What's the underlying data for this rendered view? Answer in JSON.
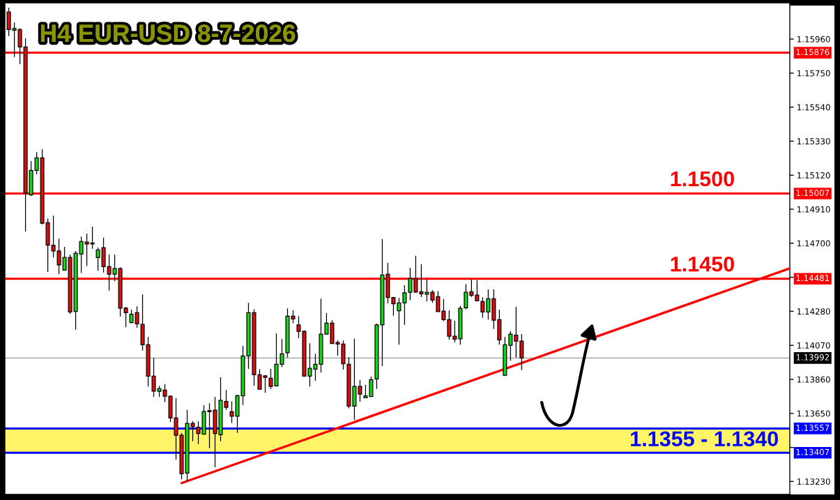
{
  "chart_data": {
    "type": "candlestick",
    "title": "H4 EUR-USD 8-7-2026",
    "categories": [
      null,
      null,
      null,
      null,
      null,
      null,
      null,
      null,
      null,
      null,
      null,
      null,
      null,
      null,
      null,
      null,
      null,
      null,
      null,
      null,
      null,
      null,
      null,
      null,
      null,
      null,
      null,
      null,
      null,
      null,
      null,
      null,
      null,
      null,
      null,
      null,
      null,
      null,
      null,
      null,
      null,
      null,
      null,
      null,
      null,
      null,
      null,
      null,
      null,
      null,
      null,
      null,
      null,
      null,
      null,
      null,
      null,
      null,
      null,
      null,
      null,
      null,
      null,
      null,
      null,
      null,
      null,
      null,
      null,
      null,
      null,
      null,
      null,
      null,
      null,
      null,
      null,
      null,
      null,
      null,
      null,
      null,
      null,
      null,
      null,
      null,
      null,
      null,
      null,
      null,
      null,
      null,
      null,
      null,
      null,
      null,
      null,
      null,
      null,
      null,
      null,
      null,
      null,
      null,
      null,
      null,
      null,
      null,
      null,
      null,
      null,
      null,
      null,
      null,
      null,
      null,
      null,
      null,
      null,
      null,
      null,
      null,
      null,
      null,
      null,
      null,
      null,
      null,
      null,
      null,
      null,
      null,
      null,
      null,
      null,
      null,
      null,
      null,
      null,
      null,
      null
    ],
    "ohlc": [
      [
        1.16127,
        1.16154,
        1.15978,
        1.16019
      ],
      [
        1.16015,
        1.16062,
        1.15849,
        1.16025
      ],
      [
        1.16019,
        1.16026,
        1.15806,
        1.15911
      ],
      [
        1.15911,
        1.15964,
        1.14774,
        1.1501
      ],
      [
        1.14999,
        1.15207,
        1.14992,
        1.1515
      ],
      [
        1.1515,
        1.15262,
        1.15125,
        1.15227
      ],
      [
        1.15227,
        1.1528,
        1.14817,
        1.14824
      ],
      [
        1.14827,
        1.14853,
        1.14523,
        1.14688
      ],
      [
        1.14688,
        1.1487,
        1.14612,
        1.14652
      ],
      [
        1.14652,
        1.14728,
        1.14509,
        1.14566
      ],
      [
        1.14534,
        1.14678,
        1.1453,
        1.14613
      ],
      [
        1.14613,
        1.1463,
        1.14265,
        1.14276
      ],
      [
        1.14279,
        1.14652,
        1.14167,
        1.14638
      ],
      [
        1.14633,
        1.14741,
        1.14516,
        1.14711
      ],
      [
        1.14707,
        1.1476,
        1.14559,
        1.14695
      ],
      [
        1.14695,
        1.14803,
        1.14666,
        1.14702
      ],
      [
        1.14612,
        1.14673,
        1.1453,
        1.14659
      ],
      [
        1.14673,
        1.14735,
        1.1452,
        1.14556
      ],
      [
        1.14556,
        1.1463,
        1.14408,
        1.14509
      ],
      [
        1.14509,
        1.1463,
        1.14466,
        1.14544
      ],
      [
        1.14544,
        1.14552,
        1.14247,
        1.143
      ],
      [
        1.143,
        1.14308,
        1.14182,
        1.14272
      ],
      [
        1.1421,
        1.1429,
        1.14207,
        1.14262
      ],
      [
        1.14272,
        1.14311,
        1.14177,
        1.14203
      ],
      [
        1.14199,
        1.14384,
        1.14038,
        1.14074
      ],
      [
        1.14074,
        1.14121,
        1.13816,
        1.1388
      ],
      [
        1.1388,
        1.13992,
        1.13751,
        1.13787
      ],
      [
        1.13786,
        1.1382,
        1.13751,
        1.13803
      ],
      [
        1.13794,
        1.1383,
        1.13719,
        1.13756
      ],
      [
        1.13756,
        1.1376,
        1.13598,
        1.13622
      ],
      [
        1.13622,
        1.13745,
        1.13365,
        1.13515
      ],
      [
        1.13515,
        1.13529,
        1.13244,
        1.13278
      ],
      [
        1.13282,
        1.13672,
        1.13232,
        1.13588
      ],
      [
        1.13588,
        1.13602,
        1.13478,
        1.13569
      ],
      [
        1.13565,
        1.13602,
        1.13461,
        1.13526
      ],
      [
        1.13522,
        1.13701,
        1.13522,
        1.13662
      ],
      [
        1.13667,
        1.13713,
        1.13435,
        1.13661
      ],
      [
        1.1367,
        1.13751,
        1.13318,
        1.13526
      ],
      [
        1.13519,
        1.13873,
        1.13478,
        1.1373
      ],
      [
        1.13724,
        1.13794,
        1.13672,
        1.13687
      ],
      [
        1.13661,
        1.13724,
        1.1359,
        1.13633
      ],
      [
        1.13633,
        1.13765,
        1.1353,
        1.1376
      ],
      [
        1.13758,
        1.14067,
        1.13702,
        1.14005
      ],
      [
        1.14005,
        1.14332,
        1.13925,
        1.14272
      ],
      [
        1.14272,
        1.14293,
        1.1382,
        1.13889
      ],
      [
        1.13889,
        1.13923,
        1.13799,
        1.13799
      ],
      [
        1.13882,
        1.13886,
        1.13777,
        1.13872
      ],
      [
        1.13867,
        1.13925,
        1.13801,
        1.13816
      ],
      [
        1.1382,
        1.14143,
        1.13816,
        1.13953
      ],
      [
        1.13953,
        1.1411,
        1.13935,
        1.14018
      ],
      [
        1.14024,
        1.14298,
        1.13995,
        1.1425
      ],
      [
        1.1425,
        1.14286,
        1.14207,
        1.14233
      ],
      [
        1.14196,
        1.1425,
        1.14114,
        1.14156
      ],
      [
        1.14157,
        1.14164,
        1.1388,
        1.1388
      ],
      [
        1.1388,
        1.14083,
        1.13816,
        1.13928
      ],
      [
        1.13923,
        1.14018,
        1.13852,
        1.13953
      ],
      [
        1.13953,
        1.14358,
        1.13902,
        1.14139
      ],
      [
        1.14139,
        1.14269,
        1.14139,
        1.14207
      ],
      [
        1.14207,
        1.14225,
        1.14078,
        1.14081
      ],
      [
        1.14088,
        1.14101,
        1.14006,
        1.14078
      ],
      [
        1.14078,
        1.141,
        1.1392,
        1.13956
      ],
      [
        1.13953,
        1.13997,
        1.13681,
        1.13695
      ],
      [
        1.13695,
        1.14111,
        1.13609,
        1.13816
      ],
      [
        1.13816,
        1.13856,
        1.13722,
        1.13769
      ],
      [
        1.13747,
        1.13827,
        1.13744,
        1.13758
      ],
      [
        1.13754,
        1.13877,
        1.13751,
        1.13859
      ],
      [
        1.13863,
        1.14204,
        1.13801,
        1.14196
      ],
      [
        1.14196,
        1.14726,
        1.13942,
        1.14504
      ],
      [
        1.14509,
        1.1458,
        1.14329,
        1.14365
      ],
      [
        1.14365,
        1.14369,
        1.14253,
        1.14326
      ],
      [
        1.14283,
        1.14362,
        1.14074,
        1.14332
      ],
      [
        1.14332,
        1.14441,
        1.14197,
        1.14394
      ],
      [
        1.14397,
        1.14549,
        1.14348,
        1.14483
      ],
      [
        1.14483,
        1.14623,
        1.14394,
        1.14399
      ],
      [
        1.14401,
        1.1457,
        1.14368,
        1.14388
      ],
      [
        1.14386,
        1.14475,
        1.14341,
        1.14397
      ],
      [
        1.14397,
        1.14411,
        1.14332,
        1.14349
      ],
      [
        1.14371,
        1.14405,
        1.14275,
        1.14278
      ],
      [
        1.14281,
        1.14355,
        1.14219,
        1.14229
      ],
      [
        1.14229,
        1.14286,
        1.14104,
        1.14126
      ],
      [
        1.14126,
        1.14222,
        1.14088,
        1.14108
      ],
      [
        1.1411,
        1.14313,
        1.14074,
        1.14298
      ],
      [
        1.14302,
        1.14447,
        1.14293,
        1.14397
      ],
      [
        1.14401,
        1.14475,
        1.14369,
        1.14378
      ],
      [
        1.1438,
        1.14473,
        1.14345,
        1.14345
      ],
      [
        1.14341,
        1.14367,
        1.1424,
        1.14276
      ],
      [
        1.14276,
        1.14415,
        1.14229,
        1.14358
      ],
      [
        1.14358,
        1.14415,
        1.14171,
        1.14225
      ],
      [
        1.14229,
        1.1429,
        1.14074,
        1.14104
      ],
      [
        1.13885,
        1.14121,
        1.1388,
        1.14074
      ],
      [
        1.1407,
        1.14157,
        1.13975,
        1.14139
      ],
      [
        1.14133,
        1.14308,
        1.13995,
        1.14096
      ],
      [
        1.14096,
        1.1414,
        1.13917,
        1.13992
      ],
      null,
      null,
      null,
      null,
      null,
      null,
      null,
      null,
      null,
      null,
      null,
      null,
      null,
      null,
      null,
      null,
      null,
      null,
      null,
      null,
      null,
      null,
      null,
      null,
      null,
      null,
      null,
      null,
      null,
      null,
      null,
      null,
      null,
      null,
      null,
      null,
      null,
      null,
      null,
      null,
      null,
      null,
      null,
      null,
      null,
      null,
      null,
      null
    ],
    "colors": [
      "#ff0000",
      "#00e600",
      "#ff0000",
      "#ff0000",
      "#00e600",
      "#00e600",
      "#ff0000",
      "#ff0000",
      "#ff0000",
      "#ff0000",
      "#00e600",
      "#ff0000",
      "#00e600",
      "#00e600",
      "#ff0000",
      "#00e600",
      "#00e600",
      "#ff0000",
      "#ff0000",
      "#00e600",
      "#ff0000",
      "#ff0000",
      "#00e600",
      "#ff0000",
      "#ff0000",
      "#ff0000",
      "#ff0000",
      "#00e600",
      "#ff0000",
      "#ff0000",
      "#ff0000",
      "#ff0000",
      "#00e600",
      "#ff0000",
      "#ff0000",
      "#00e600",
      "#ff0000",
      "#ff0000",
      "#00e600",
      "#ff0000",
      "#ff0000",
      "#00e600",
      "#00e600",
      "#00e600",
      "#ff0000",
      "#ff0000",
      "#ff0000",
      "#ff0000",
      "#00e600",
      "#00e600",
      "#00e600",
      "#ff0000",
      "#ff0000",
      "#ff0000",
      "#00e600",
      "#00e600",
      "#00e600",
      "#00e600",
      "#ff0000",
      "#ff0000",
      "#ff0000",
      "#ff0000",
      "#00e600",
      "#ff0000",
      "#00e600",
      "#00e600",
      "#00e600",
      "#00e600",
      "#ff0000",
      "#ff0000",
      "#00e600",
      "#00e600",
      "#00e600",
      "#ff0000",
      "#ff0000",
      "#00e600",
      "#ff0000",
      "#ff0000",
      "#ff0000",
      "#ff0000",
      "#ff0000",
      "#00e600",
      "#00e600",
      "#ff0000",
      "#ff0000",
      "#ff0000",
      "#00e600",
      "#ff0000",
      "#ff0000",
      "#00e600",
      "#00e600",
      "#ff0000",
      "#ff0000",
      null,
      null,
      null,
      null,
      null,
      null,
      null,
      null,
      null,
      null,
      null,
      null,
      null,
      null,
      null,
      null,
      null,
      null,
      null,
      null,
      null,
      null,
      null,
      null,
      null,
      null,
      null,
      null,
      null,
      null,
      null,
      null,
      null,
      null,
      null,
      null,
      null,
      null,
      null,
      null,
      null,
      null,
      null,
      null,
      null,
      null,
      null,
      null
    ],
    "series": [
      {
        "type": "line",
        "color": "#ff0000",
        "values": [
          null,
          null,
          null,
          null,
          null,
          null,
          null,
          null,
          null,
          null,
          null,
          null,
          null,
          null,
          null,
          null,
          null,
          null,
          null,
          null,
          null,
          null,
          null,
          null,
          null,
          null,
          null,
          null,
          null,
          null,
          null,
          1.1322,
          null,
          null,
          null,
          null,
          null,
          null,
          null,
          null,
          null,
          null,
          null,
          null,
          null,
          null,
          null,
          null,
          null,
          null,
          null,
          null,
          null,
          null,
          null,
          null,
          null,
          null,
          null,
          null,
          null,
          null,
          null,
          null,
          null,
          null,
          null,
          null,
          null,
          null,
          null,
          null,
          null,
          null,
          null,
          null,
          null,
          null,
          null,
          null,
          null,
          null,
          null,
          null,
          null,
          null,
          null,
          null,
          null,
          null,
          null,
          null,
          null,
          null,
          null,
          null,
          null,
          null,
          null,
          null,
          null,
          null,
          null,
          null,
          null,
          null,
          null,
          null,
          null,
          null,
          null,
          null,
          null,
          null,
          null,
          null,
          null,
          null,
          null,
          null,
          null,
          null,
          null,
          null,
          null,
          null,
          null,
          null,
          null,
          null,
          null,
          null,
          null,
          null,
          null,
          null,
          null,
          null,
          null,
          null,
          1.14544
        ]
      }
    ],
    "ylim": [
      1.1315,
      1.16184
    ],
    "yticks": [
      {
        "value": 1.1617,
        "label": null
      },
      {
        "value": 1.1596,
        "label": "1.15960"
      },
      {
        "value": 1.1575,
        "label": "1.15750"
      },
      {
        "value": 1.1554,
        "label": "1.15540"
      },
      {
        "value": 1.1533,
        "label": "1.15330"
      },
      {
        "value": 1.1512,
        "label": "1.15120"
      },
      {
        "value": 1.1491,
        "label": "1.14910"
      },
      {
        "value": 1.147,
        "label": "1.14700"
      },
      {
        "value": 1.1449,
        "label": null
      },
      {
        "value": 1.1428,
        "label": "1.14280"
      },
      {
        "value": 1.1407,
        "label": "1.14070"
      },
      {
        "value": 1.1386,
        "label": "1.13860"
      },
      {
        "value": 1.1365,
        "label": "1.13650"
      },
      {
        "value": 1.1344,
        "label": null
      },
      {
        "value": 1.1323,
        "label": "1.13230"
      }
    ],
    "ref_lines": [
      {
        "axis": "y",
        "value": 1.15876,
        "label": "1.15876",
        "color": "#ff0000"
      },
      {
        "axis": "y",
        "value": 1.15007,
        "label": "1.15007",
        "color": "#ff0000"
      },
      {
        "axis": "y",
        "value": 1.14481,
        "label": "1.14481",
        "color": "#ff0000"
      },
      {
        "axis": "y",
        "value": 1.13992,
        "label": "1.13992",
        "color": "#808080"
      },
      {
        "axis": "y",
        "value": 1.13557,
        "label": "1.13557",
        "color": "#0000ff"
      },
      {
        "axis": "y",
        "value": 1.13407,
        "label": "1.13407",
        "color": "#0000ff"
      }
    ],
    "bands": [
      {
        "axis": "y",
        "from": 1.13407,
        "to": 1.13557,
        "label": "1.1355 - 1.1340",
        "color": "#fff566"
      }
    ],
    "annotations": [
      {
        "text": "1.1500",
        "y": 1.15007
      },
      {
        "text": "1.1450",
        "y": 1.14481
      }
    ],
    "tick_labels": "y"
  }
}
